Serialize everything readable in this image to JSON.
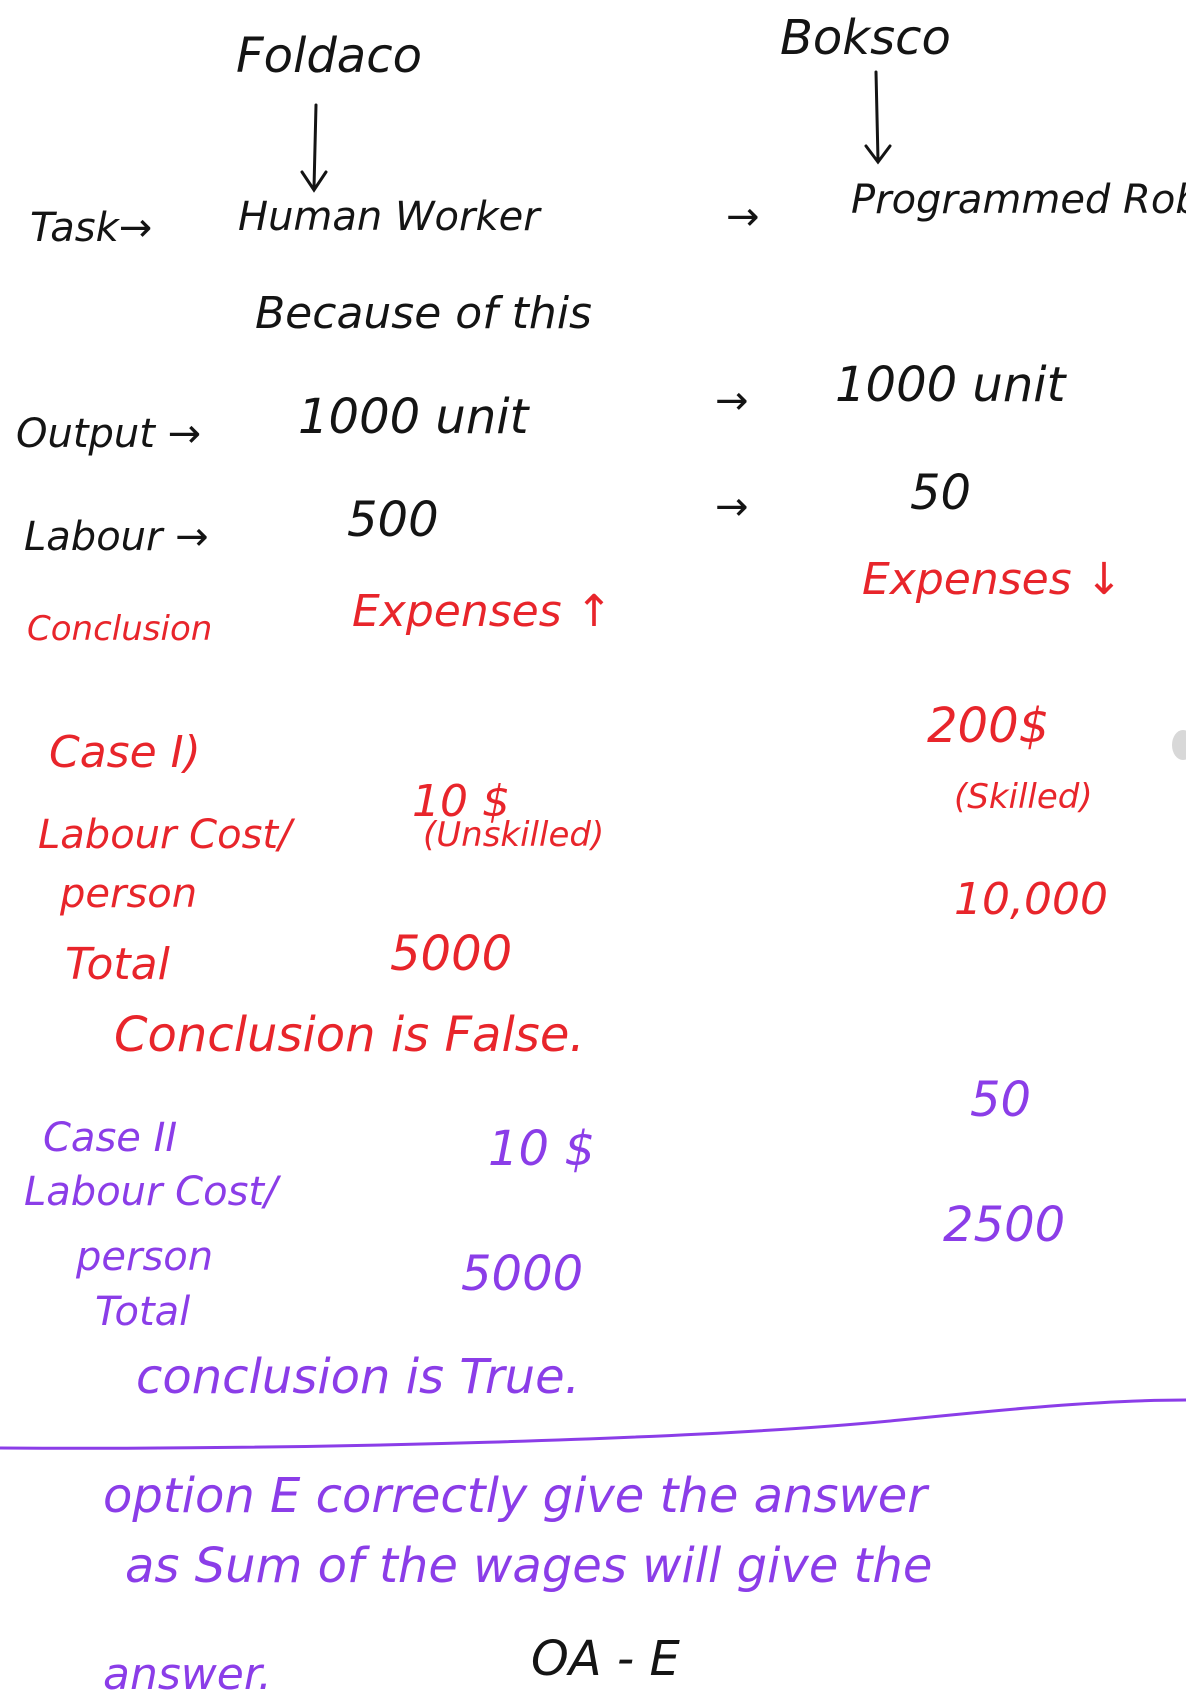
{
  "colors": {
    "ink": "#141414",
    "red": "#e8252b",
    "purple": "#8b3de8"
  },
  "header": {
    "left_company": "Foldaco",
    "right_company": "Boksco"
  },
  "rows": {
    "task_label": "Task→",
    "task_left": "Human Worker",
    "task_arrow": "→",
    "task_right": "Programmed Robot",
    "because": "Because of this",
    "output_label": "Output →",
    "output_left": "1000 unit",
    "output_arrow": "→",
    "output_right": "1000 unit",
    "labour_label": "Labour →",
    "labour_left": "500",
    "labour_arrow": "→",
    "labour_right": "50",
    "conclusion_label": "Conclusion",
    "conclusion_left": "Expenses ↑",
    "conclusion_right": "Expenses ↓"
  },
  "case1": {
    "title": "Case I)",
    "cost_label": "Labour Cost/",
    "cost_label2": "person",
    "left_cost": "10 $",
    "left_note": "(Unskilled)",
    "right_cost": "200$",
    "right_note": "(Skilled)",
    "total_label": "Total",
    "left_total": "5000",
    "right_total": "10,000",
    "result": "Conclusion is False."
  },
  "case2": {
    "title": "Case II",
    "cost_label": "Labour Cost/",
    "cost_label2": "person",
    "left_cost": "10 $",
    "right_cost": "50",
    "total_label": "Total",
    "left_total": "5000",
    "right_total": "2500",
    "result": "conclusion is True."
  },
  "footer": {
    "line1": "option E correctly give the answer",
    "line2": "as Sum of the wages will give the",
    "line3": "answer.",
    "answer": "OA - E"
  }
}
